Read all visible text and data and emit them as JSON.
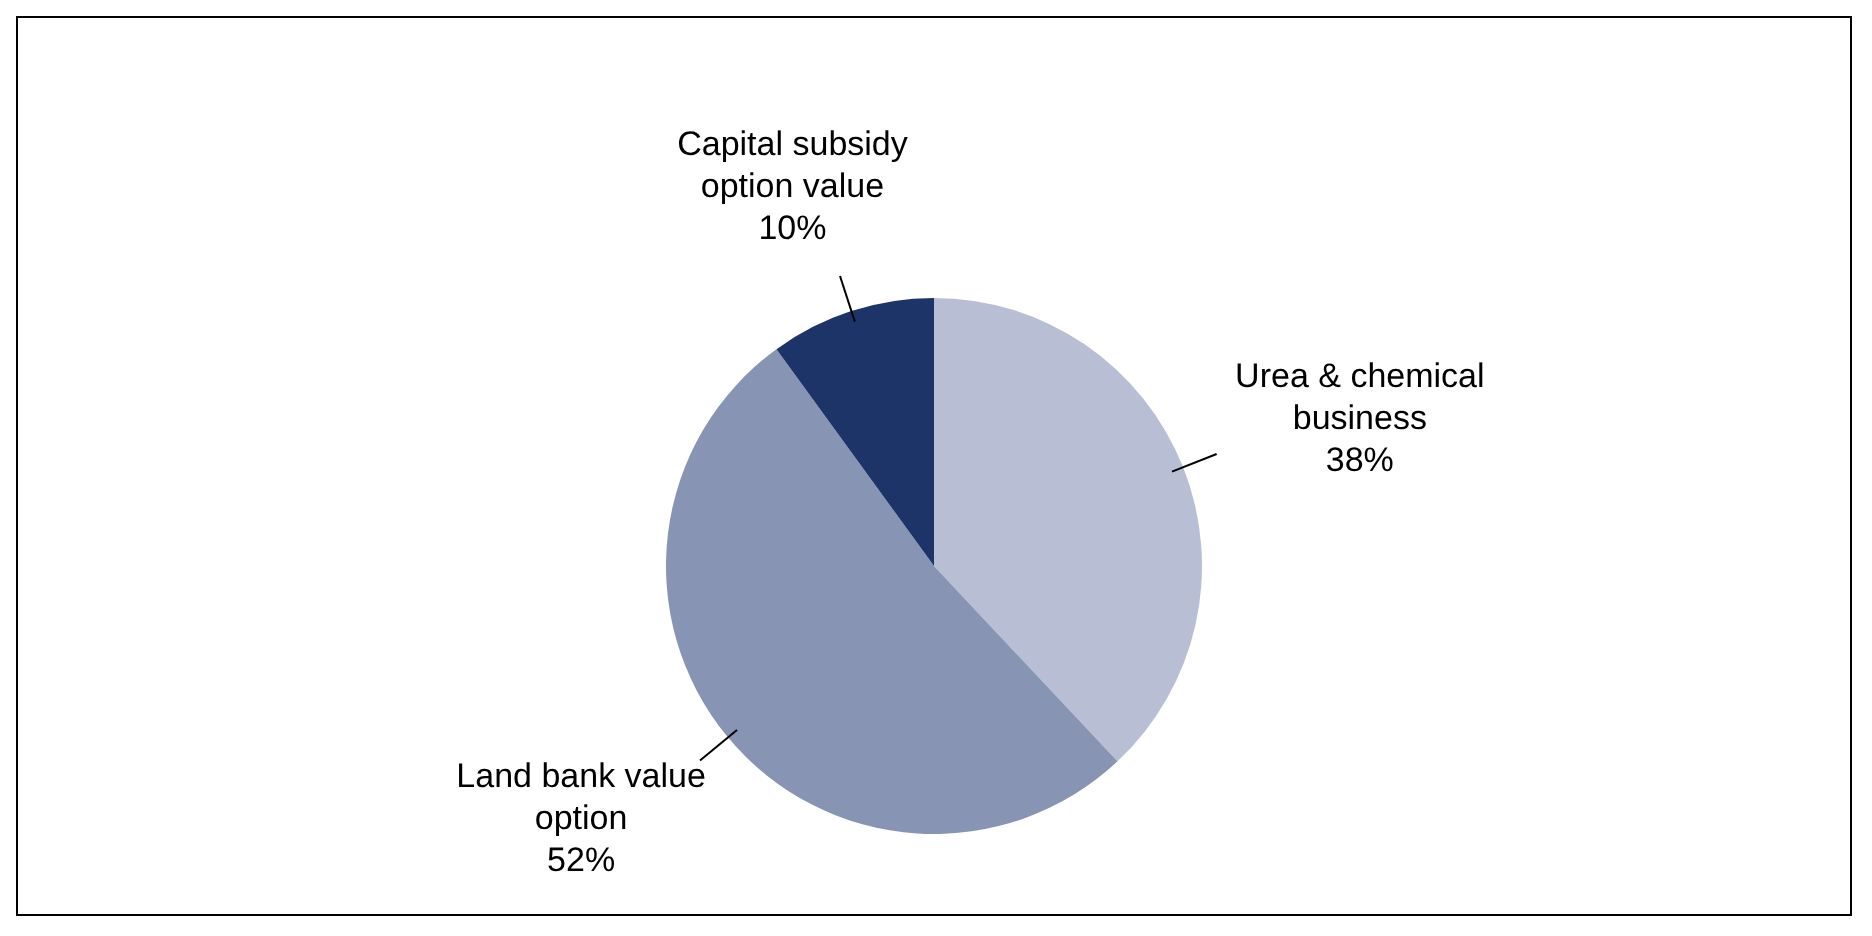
{
  "chart_data": {
    "type": "pie",
    "categories": [
      "Urea & chemical business",
      "Land bank value option",
      "Capital subsidy option value"
    ],
    "values": [
      38,
      52,
      10
    ],
    "value_labels": [
      "38%",
      "52%",
      "10%"
    ],
    "colors": [
      "#b8bed3",
      "#8894b3",
      "#1c3468"
    ],
    "legend": false
  }
}
